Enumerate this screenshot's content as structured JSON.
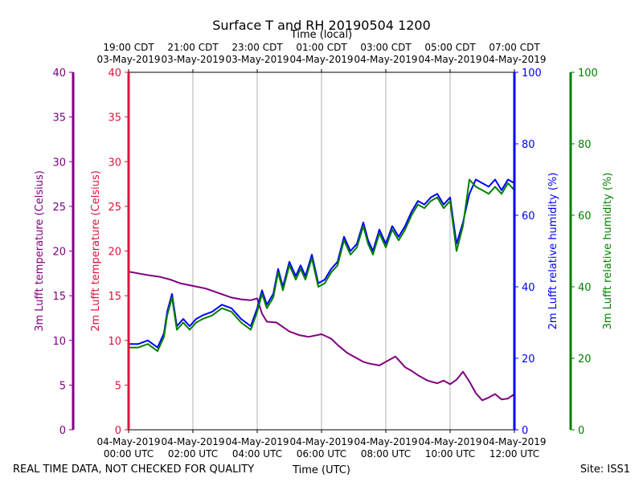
{
  "chart_data": {
    "type": "line",
    "title": "Surface T and RH 20190504 1200",
    "top_axis_title": "Time (local)",
    "bottom_axis_title": "Time (UTC)",
    "footer_left": "REAL TIME DATA, NOT CHECKED FOR QUALITY",
    "footer_right": "Site: ISS1",
    "x_range_hours": [
      0,
      12
    ],
    "bottom_ticks": [
      {
        "hour": 0,
        "line1": "04-May-2019",
        "line2": "00:00 UTC"
      },
      {
        "hour": 2,
        "line1": "04-May-2019",
        "line2": "02:00 UTC"
      },
      {
        "hour": 4,
        "line1": "04-May-2019",
        "line2": "04:00 UTC"
      },
      {
        "hour": 6,
        "line1": "04-May-2019",
        "line2": "06:00 UTC"
      },
      {
        "hour": 8,
        "line1": "04-May-2019",
        "line2": "08:00 UTC"
      },
      {
        "hour": 10,
        "line1": "04-May-2019",
        "line2": "10:00 UTC"
      },
      {
        "hour": 12,
        "line1": "04-May-2019",
        "line2": "12:00 UTC"
      }
    ],
    "top_ticks": [
      {
        "hour": 0,
        "line1": "19:00 CDT",
        "line2": "03-May-2019"
      },
      {
        "hour": 2,
        "line1": "21:00 CDT",
        "line2": "03-May-2019"
      },
      {
        "hour": 4,
        "line1": "23:00 CDT",
        "line2": "03-May-2019"
      },
      {
        "hour": 6,
        "line1": "01:00 CDT",
        "line2": "04-May-2019"
      },
      {
        "hour": 8,
        "line1": "03:00 CDT",
        "line2": "04-May-2019"
      },
      {
        "hour": 10,
        "line1": "05:00 CDT",
        "line2": "04-May-2019"
      },
      {
        "hour": 12,
        "line1": "07:00 CDT",
        "line2": "04-May-2019"
      }
    ],
    "y_axes": [
      {
        "id": "t3m",
        "label": "3m Lufft temperature (Celsius)",
        "color": "#800080",
        "range": [
          0,
          40
        ],
        "ticks": [
          0,
          5,
          10,
          15,
          20,
          25,
          30,
          35,
          40
        ]
      },
      {
        "id": "t2m",
        "label": "2m Lufft temperature (Celsius)",
        "color": "#dc143c",
        "range": [
          0,
          40
        ],
        "ticks": [
          0,
          5,
          10,
          15,
          20,
          25,
          30,
          35,
          40
        ]
      },
      {
        "id": "rh2m",
        "label": "2m Lufft relative humidity (%)",
        "color": "#0000ff",
        "range": [
          0,
          100
        ],
        "ticks": [
          0,
          20,
          40,
          60,
          80,
          100
        ]
      },
      {
        "id": "rh3m",
        "label": "3m Lufft relative humidity (%)",
        "color": "#008000",
        "range": [
          0,
          100
        ],
        "ticks": [
          0,
          20,
          40,
          60,
          80,
          100
        ]
      }
    ],
    "series": [
      {
        "name": "3m Lufft temperature",
        "axis": "t3m",
        "color": "#800080",
        "x": [
          0,
          0.3,
          0.6,
          1.0,
          1.3,
          1.6,
          2.0,
          2.4,
          2.8,
          3.2,
          3.5,
          3.8,
          4.0,
          4.15,
          4.3,
          4.6,
          4.8,
          5.0,
          5.3,
          5.6,
          6.0,
          6.3,
          6.5,
          6.8,
          7.0,
          7.3,
          7.5,
          7.8,
          8.0,
          8.3,
          8.6,
          8.8,
          9.0,
          9.3,
          9.6,
          9.8,
          10.0,
          10.2,
          10.4,
          10.6,
          10.8,
          11.0,
          11.2,
          11.4,
          11.6,
          11.8,
          12.0
        ],
        "y": [
          17.7,
          17.5,
          17.3,
          17.1,
          16.8,
          16.4,
          16.1,
          15.8,
          15.3,
          14.8,
          14.6,
          14.5,
          14.7,
          13.0,
          12.1,
          12.0,
          11.5,
          11.0,
          10.6,
          10.4,
          10.7,
          10.2,
          9.5,
          8.6,
          8.2,
          7.6,
          7.4,
          7.2,
          7.6,
          8.2,
          7.0,
          6.6,
          6.1,
          5.5,
          5.2,
          5.5,
          5.1,
          5.6,
          6.5,
          5.4,
          4.1,
          3.3,
          3.6,
          4.0,
          3.4,
          3.5,
          4.0
        ]
      },
      {
        "name": "2m Lufft relative humidity",
        "axis": "rh2m",
        "color": "#0000ff",
        "x": [
          0,
          0.3,
          0.6,
          0.9,
          1.1,
          1.2,
          1.35,
          1.5,
          1.7,
          1.9,
          2.1,
          2.3,
          2.6,
          2.9,
          3.2,
          3.5,
          3.8,
          4.0,
          4.15,
          4.3,
          4.5,
          4.65,
          4.8,
          5.0,
          5.2,
          5.35,
          5.5,
          5.7,
          5.9,
          6.1,
          6.3,
          6.5,
          6.7,
          6.9,
          7.1,
          7.3,
          7.45,
          7.6,
          7.8,
          8.0,
          8.2,
          8.4,
          8.6,
          8.8,
          9.0,
          9.2,
          9.4,
          9.6,
          9.8,
          10.0,
          10.2,
          10.4,
          10.6,
          10.8,
          11.0,
          11.2,
          11.4,
          11.6,
          11.8,
          12.0
        ],
        "y": [
          24,
          24,
          25,
          23,
          27,
          33,
          38,
          29,
          31,
          29,
          31,
          32,
          33,
          35,
          34,
          31,
          29,
          34,
          39,
          35,
          38,
          45,
          40,
          47,
          43,
          46,
          43,
          49,
          41,
          42,
          45,
          47,
          54,
          50,
          52,
          58,
          53,
          50,
          56,
          52,
          57,
          54,
          57,
          61,
          64,
          63,
          65,
          66,
          63,
          65,
          52,
          58,
          66,
          70,
          69,
          68,
          70,
          67,
          70,
          69
        ]
      },
      {
        "name": "3m Lufft relative humidity",
        "axis": "rh3m",
        "color": "#008000",
        "x": [
          0,
          0.3,
          0.6,
          0.9,
          1.1,
          1.2,
          1.35,
          1.5,
          1.7,
          1.9,
          2.1,
          2.3,
          2.6,
          2.9,
          3.2,
          3.5,
          3.8,
          4.0,
          4.15,
          4.3,
          4.5,
          4.65,
          4.8,
          5.0,
          5.2,
          5.35,
          5.5,
          5.7,
          5.9,
          6.1,
          6.3,
          6.5,
          6.7,
          6.9,
          7.1,
          7.3,
          7.45,
          7.6,
          7.8,
          8.0,
          8.2,
          8.4,
          8.6,
          8.8,
          9.0,
          9.2,
          9.4,
          9.6,
          9.8,
          10.0,
          10.2,
          10.4,
          10.6,
          10.8,
          11.0,
          11.2,
          11.4,
          11.6,
          11.8,
          12.0
        ],
        "y": [
          23,
          23,
          24,
          22,
          26,
          32,
          37,
          28,
          30,
          28,
          30,
          31,
          32,
          34,
          33,
          30,
          28,
          33,
          38,
          34,
          37,
          44,
          39,
          46,
          42,
          45,
          42,
          48,
          40,
          41,
          44,
          46,
          53,
          49,
          51,
          57,
          52,
          49,
          55,
          51,
          56,
          53,
          56,
          60,
          63,
          62,
          64,
          65,
          62,
          64,
          50,
          57,
          70,
          68,
          67,
          66,
          68,
          66,
          69,
          67
        ]
      }
    ]
  }
}
